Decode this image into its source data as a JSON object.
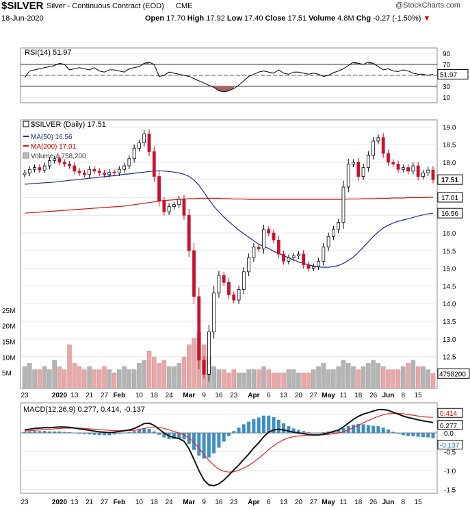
{
  "header": {
    "symbol": "$SILVER",
    "description": "Silver - Continuous Contract (EOD)",
    "exchange": "CME",
    "watermark": "@StockCharts.com",
    "date": "18-Jun-2020",
    "open_label": "Open",
    "open": "17.70",
    "high_label": "High",
    "high": "17.92",
    "low_label": "Low",
    "low": "17.40",
    "close_label": "Close",
    "close": "17.51",
    "volume_label": "Volume",
    "volume": "4.8M",
    "chg_label": "Chg",
    "chg": "-0.27 (-1.50%)"
  },
  "chart_data": [
    {
      "type": "line",
      "panel": "rsi",
      "legend": "RSI(14) 51.97",
      "current_value_label": "51.97",
      "y_ticks": [
        90,
        70,
        50,
        30,
        10
      ],
      "ylim": [
        0,
        100
      ],
      "reference_lines": [
        70,
        30
      ],
      "series": [
        {
          "name": "RSI(14)",
          "values": [
            46,
            58,
            60,
            62,
            64,
            66,
            68,
            72,
            70,
            60,
            62,
            64,
            62,
            60,
            64,
            58,
            56,
            60,
            60,
            58,
            56,
            62,
            64,
            66,
            72,
            74,
            70,
            48,
            50,
            56,
            54,
            52,
            50,
            48,
            44,
            40,
            36,
            32,
            28,
            22,
            20,
            22,
            26,
            32,
            40,
            48,
            52,
            56,
            58,
            56,
            54,
            60,
            54,
            52,
            56,
            56,
            54,
            52,
            54,
            52,
            48,
            50,
            55,
            58,
            62,
            68,
            74,
            72,
            70,
            74,
            72,
            66,
            60,
            62,
            58,
            57,
            60,
            58,
            54,
            52,
            52,
            50,
            51.97
          ]
        }
      ]
    },
    {
      "type": "candlestick",
      "panel": "price",
      "legend": [
        "$SILVER (Daily) 17.51",
        "MA(50) 16.56",
        "MA(200) 17.01",
        "Volume 4,758,200"
      ],
      "ylim": [
        11.6,
        19.2
      ],
      "y_ticks": [
        19.0,
        18.5,
        18.0,
        17.5,
        17.0,
        16.5,
        16.0,
        15.5,
        15.0,
        14.5,
        14.0,
        13.5,
        13.0,
        12.5,
        12.0
      ],
      "price_tags": {
        "close": "17.51",
        "ma200": "17.01",
        "ma50": "16.56"
      },
      "x_labels": [
        "23",
        "2020",
        "13",
        "21",
        "27",
        "Feb",
        "10",
        "18",
        "24",
        "Mar",
        "9",
        "16",
        "23",
        "Apr",
        "6",
        "13",
        "20",
        "27",
        "May",
        "11",
        "18",
        "26",
        "Jun",
        "8",
        "15"
      ],
      "close": [
        17.7,
        17.8,
        17.85,
        17.78,
        17.9,
        18.05,
        18.1,
        18.0,
        17.95,
        17.9,
        17.75,
        17.7,
        17.65,
        17.8,
        17.75,
        17.7,
        17.65,
        17.72,
        17.7,
        17.8,
        17.9,
        18.1,
        18.4,
        18.55,
        18.8,
        18.3,
        17.6,
        16.9,
        16.6,
        16.75,
        16.8,
        16.95,
        16.5,
        15.5,
        14.2,
        12.4,
        12.0,
        13.2,
        14.3,
        14.8,
        14.6,
        14.25,
        14.1,
        14.4,
        14.9,
        15.3,
        15.6,
        15.55,
        16.1,
        16.0,
        15.8,
        15.4,
        15.2,
        15.3,
        15.35,
        15.4,
        15.1,
        15.0,
        15.05,
        15.2,
        15.6,
        15.9,
        16.1,
        16.3,
        17.3,
        17.95,
        18.0,
        17.6,
        17.85,
        18.2,
        18.6,
        18.7,
        18.25,
        18.0,
        17.95,
        17.8,
        17.85,
        17.75,
        17.9,
        17.6,
        17.7,
        17.78,
        17.51
      ],
      "ma50": [
        17.38,
        17.39,
        17.4,
        17.41,
        17.42,
        17.43,
        17.44,
        17.46,
        17.47,
        17.49,
        17.5,
        17.52,
        17.53,
        17.55,
        17.56,
        17.58,
        17.59,
        17.61,
        17.62,
        17.64,
        17.66,
        17.67,
        17.69,
        17.71,
        17.72,
        17.74,
        17.75,
        17.76,
        17.75,
        17.74,
        17.72,
        17.7,
        17.66,
        17.6,
        17.5,
        17.35,
        17.15,
        16.95,
        16.75,
        16.6,
        16.45,
        16.32,
        16.2,
        16.08,
        15.98,
        15.88,
        15.78,
        15.68,
        15.62,
        15.56,
        15.48,
        15.42,
        15.36,
        15.3,
        15.24,
        15.18,
        15.14,
        15.1,
        15.06,
        15.04,
        15.03,
        15.03,
        15.05,
        15.08,
        15.14,
        15.22,
        15.32,
        15.45,
        15.6,
        15.75,
        15.9,
        16.03,
        16.14,
        16.22,
        16.28,
        16.33,
        16.37,
        16.4,
        16.44,
        16.48,
        16.51,
        16.54,
        16.56
      ],
      "ma200": [
        16.56,
        16.57,
        16.58,
        16.59,
        16.6,
        16.61,
        16.62,
        16.63,
        16.64,
        16.65,
        16.66,
        16.67,
        16.68,
        16.69,
        16.7,
        16.71,
        16.72,
        16.73,
        16.74,
        16.75,
        16.76,
        16.78,
        16.8,
        16.82,
        16.84,
        16.86,
        16.88,
        16.9,
        16.92,
        16.93,
        16.94,
        16.95,
        16.96,
        16.97,
        16.97,
        16.98,
        16.98,
        16.98,
        16.98,
        16.98,
        16.97,
        16.97,
        16.96,
        16.96,
        16.96,
        16.95,
        16.95,
        16.95,
        16.95,
        16.95,
        16.95,
        16.95,
        16.95,
        16.95,
        16.95,
        16.95,
        16.95,
        16.95,
        16.95,
        16.95,
        16.95,
        16.95,
        16.95,
        16.95,
        16.95,
        16.96,
        16.96,
        16.96,
        16.97,
        16.97,
        16.97,
        16.98,
        16.98,
        16.98,
        16.99,
        16.99,
        16.99,
        17.0,
        17.0,
        17.0,
        17.0,
        17.01,
        17.01
      ],
      "volume_y_ticks": [
        "25M",
        "20M",
        "15M",
        "10M",
        "5M"
      ],
      "volume_ylim": [
        0,
        30
      ],
      "volume_current_label": "4758200",
      "volume": [
        7,
        8,
        6,
        6,
        7,
        6,
        9,
        7,
        6,
        14,
        8,
        7,
        6,
        7,
        6,
        6,
        7,
        6,
        5,
        6,
        7,
        6,
        6,
        8,
        9,
        12,
        10,
        8,
        9,
        7,
        7,
        8,
        10,
        14,
        16,
        18,
        14,
        10,
        7,
        6,
        6,
        5,
        6,
        5,
        5,
        6,
        6,
        6,
        7,
        6,
        5,
        5,
        5,
        6,
        6,
        5,
        5,
        5,
        6,
        7,
        8,
        6,
        6,
        7,
        9,
        8,
        7,
        6,
        7,
        8,
        9,
        8,
        7,
        6,
        6,
        6,
        7,
        8,
        9,
        7,
        7,
        6,
        4.76
      ]
    },
    {
      "type": "line",
      "panel": "macd",
      "legend": "MACD(12,26,9) 0.277, 0.414, -0.137",
      "y_ticks": [
        0.5,
        0.0,
        -0.5,
        -1.0,
        -1.5
      ],
      "ylim": [
        -1.6,
        0.8
      ],
      "value_tags": [
        "0.414",
        "0.277",
        "-0.137"
      ],
      "series": [
        {
          "name": "MACD",
          "values": [
            0.08,
            0.1,
            0.12,
            0.13,
            0.14,
            0.14,
            0.15,
            0.16,
            0.16,
            0.15,
            0.13,
            0.11,
            0.09,
            0.07,
            0.05,
            0.03,
            0.02,
            0.01,
            0.02,
            0.04,
            0.06,
            0.08,
            0.12,
            0.18,
            0.25,
            0.26,
            0.2,
            0.1,
            0.0,
            -0.08,
            -0.12,
            -0.15,
            -0.22,
            -0.42,
            -0.7,
            -1.0,
            -1.25,
            -1.38,
            -1.4,
            -1.35,
            -1.25,
            -1.12,
            -0.98,
            -0.85,
            -0.7,
            -0.56,
            -0.4,
            -0.26,
            -0.1,
            0.02,
            0.08,
            0.1,
            0.08,
            0.05,
            0.02,
            0.0,
            -0.02,
            -0.04,
            -0.05,
            -0.05,
            -0.03,
            0.0,
            0.04,
            0.08,
            0.16,
            0.26,
            0.36,
            0.44,
            0.5,
            0.54,
            0.58,
            0.62,
            0.62,
            0.6,
            0.55,
            0.5,
            0.45,
            0.41,
            0.38,
            0.35,
            0.32,
            0.3,
            0.277
          ]
        },
        {
          "name": "Signal",
          "values": [
            0.05,
            0.06,
            0.07,
            0.08,
            0.09,
            0.1,
            0.11,
            0.12,
            0.13,
            0.13,
            0.13,
            0.13,
            0.12,
            0.11,
            0.1,
            0.09,
            0.08,
            0.07,
            0.06,
            0.06,
            0.06,
            0.06,
            0.07,
            0.09,
            0.12,
            0.15,
            0.16,
            0.15,
            0.12,
            0.08,
            0.04,
            0.0,
            -0.05,
            -0.13,
            -0.25,
            -0.4,
            -0.57,
            -0.73,
            -0.86,
            -0.96,
            -1.02,
            -1.04,
            -1.03,
            -0.99,
            -0.93,
            -0.86,
            -0.77,
            -0.67,
            -0.56,
            -0.44,
            -0.34,
            -0.25,
            -0.18,
            -0.13,
            -0.1,
            -0.08,
            -0.07,
            -0.06,
            -0.06,
            -0.06,
            -0.05,
            -0.04,
            -0.02,
            0.0,
            0.03,
            0.08,
            0.14,
            0.2,
            0.27,
            0.33,
            0.39,
            0.44,
            0.48,
            0.51,
            0.52,
            0.52,
            0.51,
            0.49,
            0.47,
            0.45,
            0.43,
            0.42,
            0.414
          ]
        }
      ]
    }
  ]
}
